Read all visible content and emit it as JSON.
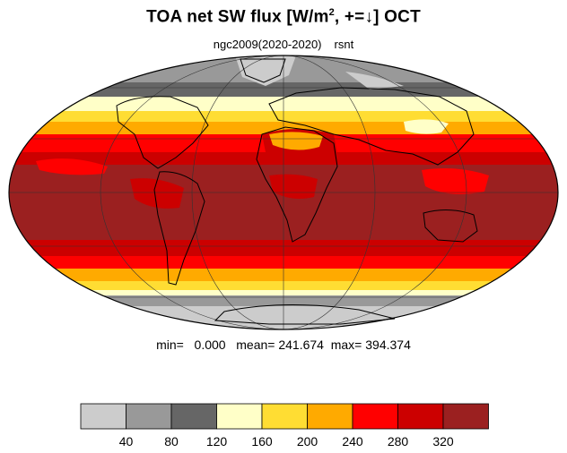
{
  "title": {
    "main": "TOA net SW flux [W/m",
    "sup": "2",
    "rest": ", +=↓]  OCT"
  },
  "subtitle": {
    "left": "ngc2009(2020-2020)",
    "right": "rsnt"
  },
  "stats": {
    "min_label": "min=",
    "min": "0.000",
    "mean_label": "mean=",
    "mean": "241.674",
    "max_label": "max=",
    "max": "394.374"
  },
  "colorbar": {
    "colors": [
      "#cccccc",
      "#999999",
      "#666666",
      "#ffffc8",
      "#ffdd33",
      "#ffaa00",
      "#ff0000",
      "#cc0000",
      "#9b2020"
    ],
    "ticks": [
      "40",
      "80",
      "120",
      "160",
      "200",
      "240",
      "280",
      "320"
    ]
  },
  "map": {
    "projection": "mollweide",
    "band_colors": {
      "polar": "#999999",
      "polar_dark": "#666666",
      "subpolar_light": "#ffffc8",
      "subpolar_yellow": "#ffdd33",
      "midlat_orange": "#ffaa00",
      "red": "#ff0000",
      "darkred": "#cc0000",
      "tropics": "#9b2020"
    }
  }
}
